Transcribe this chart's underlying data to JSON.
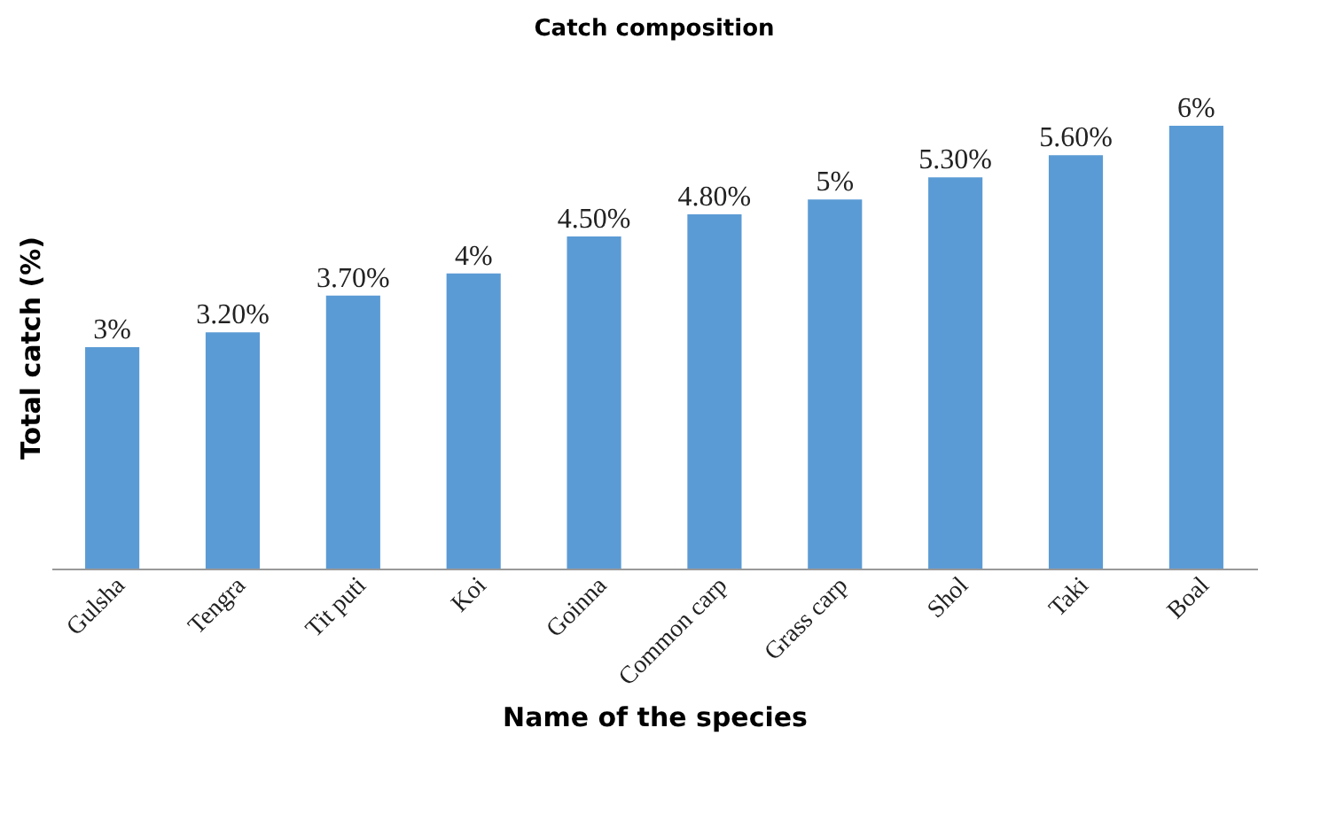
{
  "chart_data": {
    "type": "bar",
    "title": "Catch composition",
    "xlabel": "Name of the species",
    "ylabel": "Total catch (%)",
    "categories": [
      "Gulsha",
      "Tengra",
      "Tit puti",
      "Koi",
      "Goinna",
      "Common carp",
      "Grass carp",
      "Shol",
      "Taki",
      "Boal"
    ],
    "values": [
      3,
      3.2,
      3.7,
      4,
      4.5,
      4.8,
      5,
      5.3,
      5.6,
      6
    ],
    "value_labels": [
      "3%",
      "3.20%",
      "3.70%",
      "4%",
      "4.50%",
      "4.80%",
      "5%",
      "5.30%",
      "5.60%",
      "6%"
    ],
    "color": "#5b9bd5",
    "tick_labels": "x"
  }
}
